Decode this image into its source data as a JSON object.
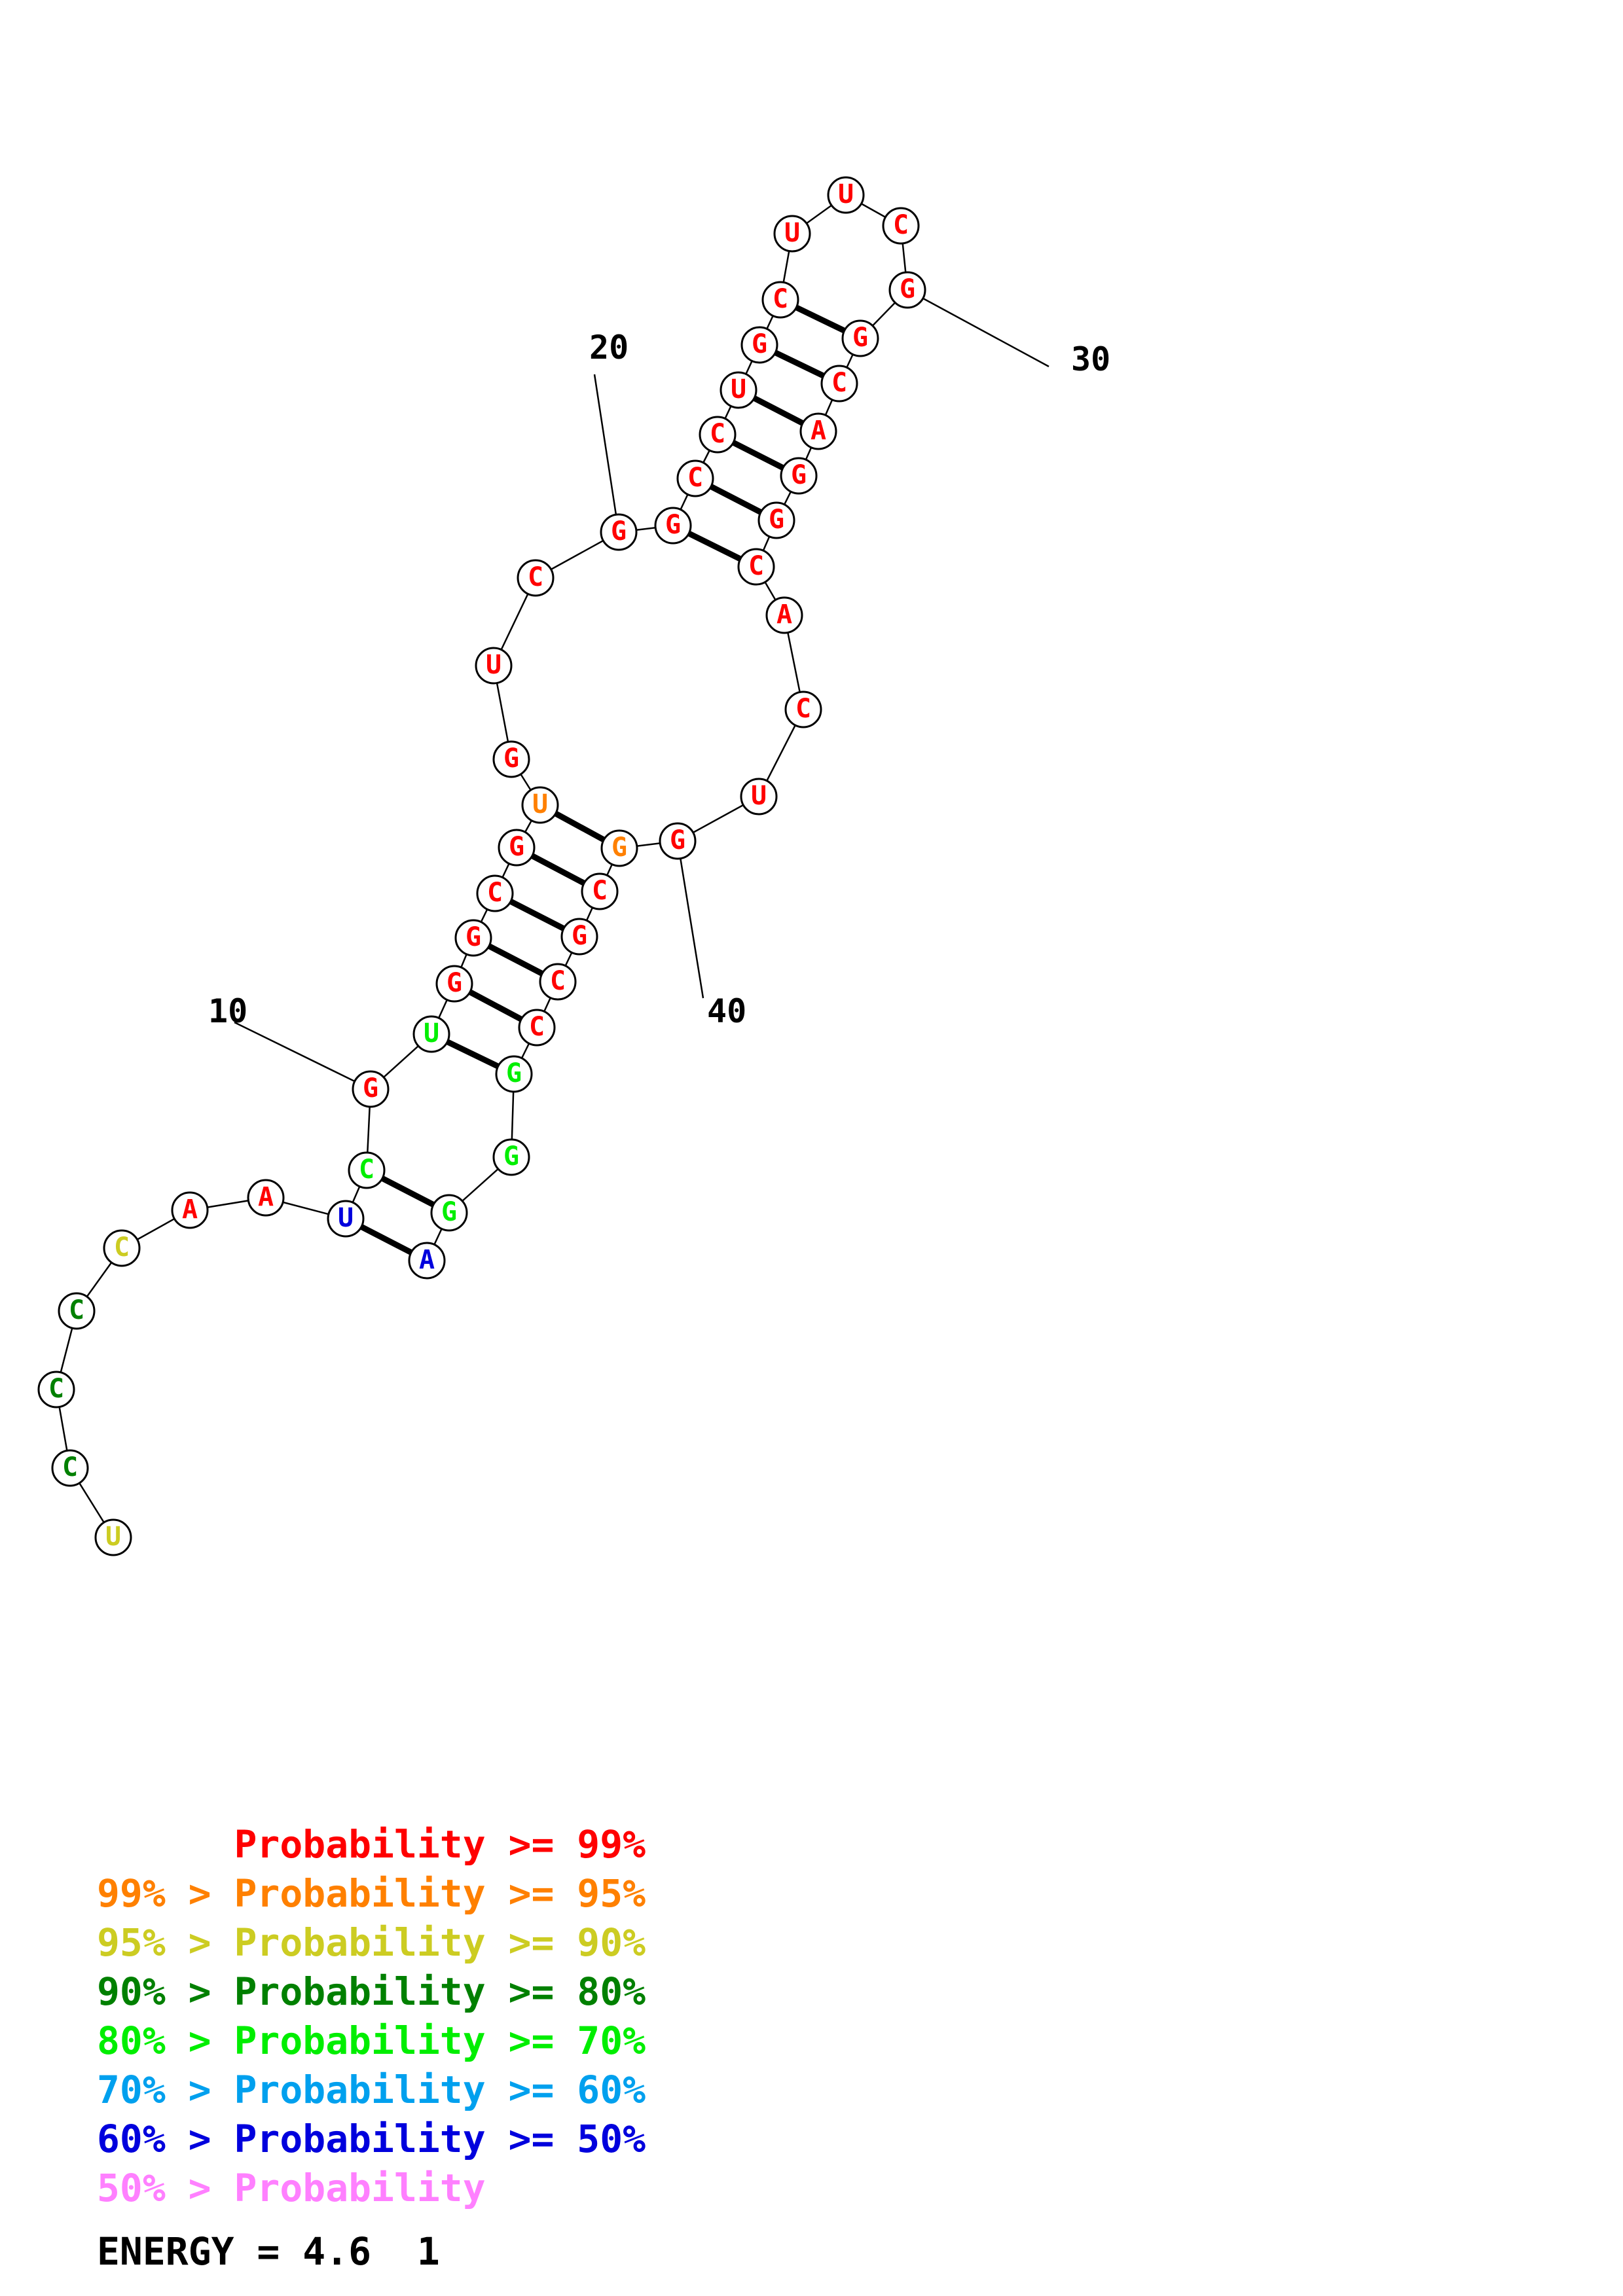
{
  "colors": {
    "p99": "#ff0000",
    "p95": "#ff8000",
    "p90": "#cccc22",
    "p80": "#008000",
    "p70": "#00ee00",
    "p60": "#00a0ee",
    "p50": "#0000dd",
    "plow": "#ff80ff"
  },
  "nucleotides": [
    {
      "index": 1,
      "base": "U",
      "prob": "p90"
    },
    {
      "index": 2,
      "base": "C",
      "prob": "p80"
    },
    {
      "index": 3,
      "base": "C",
      "prob": "p80"
    },
    {
      "index": 4,
      "base": "C",
      "prob": "p80"
    },
    {
      "index": 5,
      "base": "C",
      "prob": "p90"
    },
    {
      "index": 6,
      "base": "A",
      "prob": "p99"
    },
    {
      "index": 7,
      "base": "A",
      "prob": "p99"
    },
    {
      "index": 8,
      "base": "U",
      "prob": "p50"
    },
    {
      "index": 9,
      "base": "C",
      "prob": "p70"
    },
    {
      "index": 10,
      "base": "G",
      "prob": "p99"
    },
    {
      "index": 11,
      "base": "U",
      "prob": "p70"
    },
    {
      "index": 12,
      "base": "G",
      "prob": "p99"
    },
    {
      "index": 13,
      "base": "G",
      "prob": "p99"
    },
    {
      "index": 14,
      "base": "C",
      "prob": "p99"
    },
    {
      "index": 15,
      "base": "G",
      "prob": "p99"
    },
    {
      "index": 16,
      "base": "U",
      "prob": "p95"
    },
    {
      "index": 17,
      "base": "G",
      "prob": "p99"
    },
    {
      "index": 18,
      "base": "U",
      "prob": "p99"
    },
    {
      "index": 19,
      "base": "C",
      "prob": "p99"
    },
    {
      "index": 20,
      "base": "G",
      "prob": "p99"
    },
    {
      "index": 21,
      "base": "G",
      "prob": "p99"
    },
    {
      "index": 22,
      "base": "C",
      "prob": "p99"
    },
    {
      "index": 23,
      "base": "C",
      "prob": "p99"
    },
    {
      "index": 24,
      "base": "U",
      "prob": "p99"
    },
    {
      "index": 25,
      "base": "G",
      "prob": "p99"
    },
    {
      "index": 26,
      "base": "C",
      "prob": "p99"
    },
    {
      "index": 27,
      "base": "U",
      "prob": "p99"
    },
    {
      "index": 28,
      "base": "U",
      "prob": "p99"
    },
    {
      "index": 29,
      "base": "C",
      "prob": "p99"
    },
    {
      "index": 30,
      "base": "G",
      "prob": "p99"
    },
    {
      "index": 31,
      "base": "G",
      "prob": "p99"
    },
    {
      "index": 32,
      "base": "C",
      "prob": "p99"
    },
    {
      "index": 33,
      "base": "A",
      "prob": "p99"
    },
    {
      "index": 34,
      "base": "G",
      "prob": "p99"
    },
    {
      "index": 35,
      "base": "G",
      "prob": "p99"
    },
    {
      "index": 36,
      "base": "C",
      "prob": "p99"
    },
    {
      "index": 37,
      "base": "A",
      "prob": "p99"
    },
    {
      "index": 38,
      "base": "C",
      "prob": "p99"
    },
    {
      "index": 39,
      "base": "U",
      "prob": "p99"
    },
    {
      "index": 40,
      "base": "G",
      "prob": "p99"
    },
    {
      "index": 41,
      "base": "G",
      "prob": "p95"
    },
    {
      "index": 42,
      "base": "C",
      "prob": "p99"
    },
    {
      "index": 43,
      "base": "G",
      "prob": "p99"
    },
    {
      "index": 44,
      "base": "C",
      "prob": "p99"
    },
    {
      "index": 45,
      "base": "C",
      "prob": "p99"
    },
    {
      "index": 46,
      "base": "G",
      "prob": "p70"
    },
    {
      "index": 47,
      "base": "G",
      "prob": "p70"
    },
    {
      "index": 48,
      "base": "G",
      "prob": "p70"
    },
    {
      "index": 49,
      "base": "A",
      "prob": "p50"
    }
  ],
  "pairs": [
    [
      8,
      49
    ],
    [
      9,
      48
    ],
    [
      11,
      46
    ],
    [
      12,
      45
    ],
    [
      13,
      44
    ],
    [
      14,
      43
    ],
    [
      15,
      42
    ],
    [
      16,
      41
    ],
    [
      21,
      36
    ],
    [
      22,
      35
    ],
    [
      23,
      34
    ],
    [
      24,
      33
    ],
    [
      25,
      32
    ],
    [
      26,
      31
    ]
  ],
  "numbers": [
    {
      "label": "10",
      "index": 10
    },
    {
      "label": "20",
      "index": 20
    },
    {
      "label": "30",
      "index": 30
    },
    {
      "label": "40",
      "index": 40
    }
  ],
  "legend": [
    {
      "text": "      Probability >= 99%",
      "color": "p99"
    },
    {
      "text": "99% > Probability >= 95%",
      "color": "p95"
    },
    {
      "text": "95% > Probability >= 90%",
      "color": "p90"
    },
    {
      "text": "90% > Probability >= 80%",
      "color": "p80"
    },
    {
      "text": "80% > Probability >= 70%",
      "color": "p70"
    },
    {
      "text": "70% > Probability >= 60%",
      "color": "p60"
    },
    {
      "text": "60% > Probability >= 50%",
      "color": "p50"
    },
    {
      "text": "50% > Probability",
      "color": "plow"
    }
  ],
  "energy": "ENERGY = 4.6  1"
}
